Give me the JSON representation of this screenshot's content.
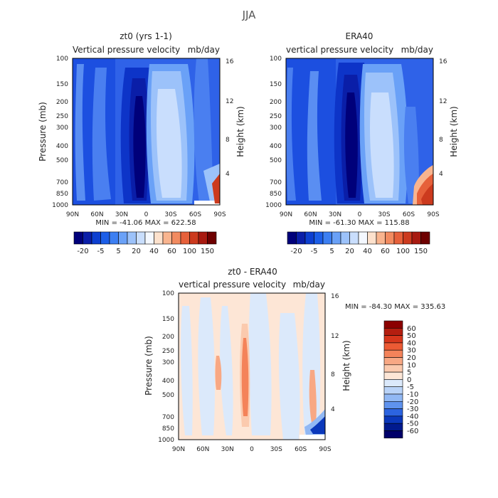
{
  "figure": {
    "title": "JJA"
  },
  "chart_data": [
    {
      "type": "heatmap",
      "title": "zt0 (yrs 1-1)",
      "subtitle_left": "Vertical pressure velocity",
      "subtitle_right": "mb/day",
      "ylabel": "Pressure (mb)",
      "ylabel_right": "Height (km)",
      "x_ticks": [
        "90N",
        "60N",
        "30N",
        "0",
        "30S",
        "60S",
        "90S"
      ],
      "y_ticks": [
        "100",
        "150",
        "200",
        "250",
        "300",
        "400",
        "500",
        "700",
        "850",
        "1000"
      ],
      "y_ticks_right": [
        "16",
        "12",
        "8",
        "4"
      ],
      "y_scale": "log",
      "min_max_text": "MIN = -41.06   MAX = 622.58",
      "colorbar_labels": [
        "-20",
        "-5",
        "5",
        "20",
        "40",
        "60",
        "100",
        "150"
      ],
      "colors": [
        "#00007a",
        "#0a1ea8",
        "#0d3fd0",
        "#1c5ee8",
        "#3c7ff2",
        "#6aa1f7",
        "#9cc2fa",
        "#c9defd",
        "#f4f8ff",
        "#fde1cc",
        "#f9b48e",
        "#f28b60",
        "#e6603a",
        "#cc3a1e",
        "#a81a10",
        "#6e0000"
      ],
      "zero_level_color": "#f4f8ff"
    },
    {
      "type": "heatmap",
      "title": "ERA40",
      "subtitle_left": "vertical pressure velocity",
      "subtitle_right": "mb/day",
      "ylabel": "Pressure (mb)",
      "ylabel_right": "Height (km)",
      "x_ticks": [
        "90N",
        "60N",
        "30N",
        "0",
        "30S",
        "60S",
        "90S"
      ],
      "y_ticks": [
        "100",
        "150",
        "200",
        "250",
        "300",
        "400",
        "500",
        "700",
        "850",
        "1000"
      ],
      "y_ticks_right": [
        "16",
        "12",
        "8",
        "4"
      ],
      "y_scale": "log",
      "min_max_text": "MIN = -61.30   MAX = 115.88",
      "colorbar_labels": [
        "-20",
        "-5",
        "5",
        "20",
        "40",
        "60",
        "100",
        "150"
      ],
      "colors": [
        "#00007a",
        "#0a1ea8",
        "#0d3fd0",
        "#1c5ee8",
        "#3c7ff2",
        "#6aa1f7",
        "#9cc2fa",
        "#c9defd",
        "#f4f8ff",
        "#fde1cc",
        "#f9b48e",
        "#f28b60",
        "#e6603a",
        "#cc3a1e",
        "#a81a10",
        "#6e0000"
      ]
    },
    {
      "type": "heatmap",
      "title": "zt0 - ERA40",
      "subtitle_left": "vertical pressure velocity",
      "subtitle_right": "mb/day",
      "ylabel": "Pressure (mb)",
      "ylabel_right": "Height (km)",
      "x_ticks": [
        "90N",
        "60N",
        "30N",
        "0",
        "30S",
        "60S",
        "90S"
      ],
      "y_ticks": [
        "100",
        "150",
        "200",
        "250",
        "300",
        "400",
        "500",
        "700",
        "850",
        "1000"
      ],
      "y_ticks_right": [
        "16",
        "12",
        "8",
        "4"
      ],
      "y_scale": "log",
      "min_max_text": "MIN = -84.30   MAX = 335.63",
      "colorbar_labels": [
        "60",
        "50",
        "40",
        "30",
        "20",
        "10",
        "5",
        "0",
        "-5",
        "-10",
        "-20",
        "-30",
        "-40",
        "-50",
        "-60"
      ],
      "colors": [
        "#8b0000",
        "#b41e10",
        "#d6361c",
        "#ec5a34",
        "#f4835a",
        "#f8a884",
        "#fbcaae",
        "#fde6d6",
        "#dbe9fb",
        "#b9d3f8",
        "#91b8f4",
        "#5f93ee",
        "#2c64e0",
        "#0b38bb",
        "#011a8e",
        "#00006a"
      ]
    }
  ]
}
